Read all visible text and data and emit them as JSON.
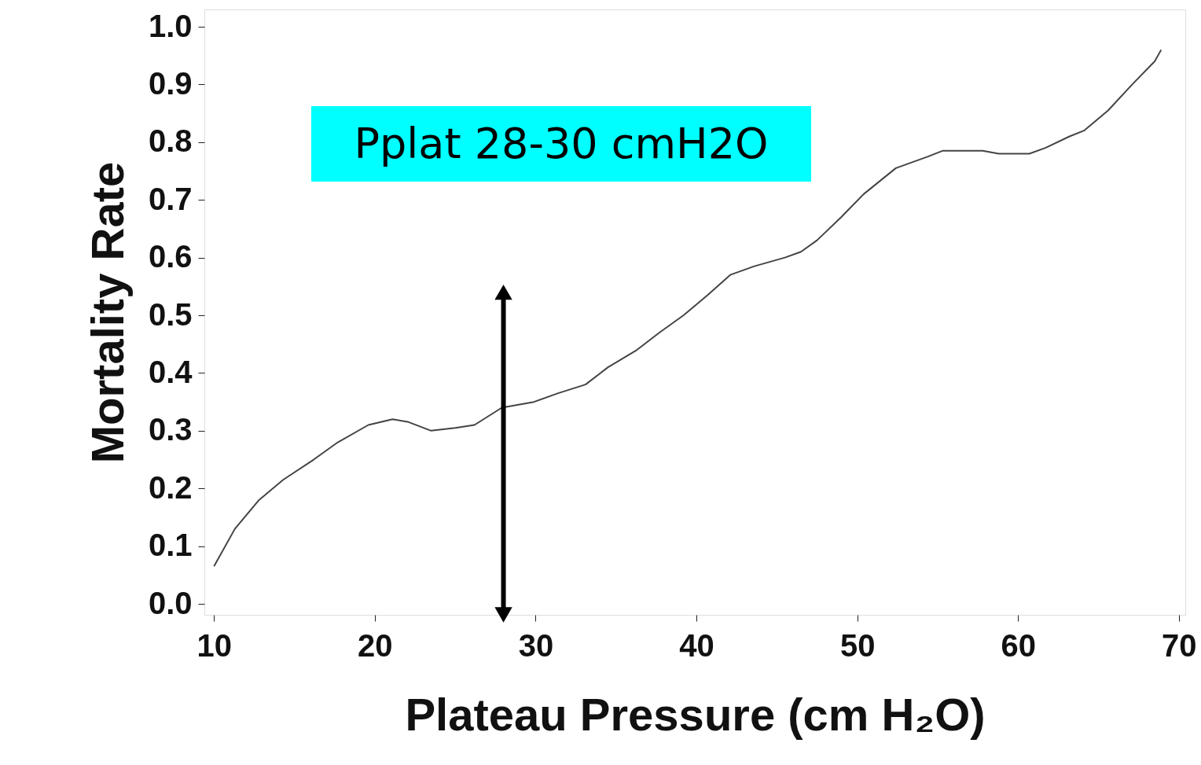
{
  "chart_data": {
    "type": "line",
    "xlabel": "Plateau Pressure (cm H₂O)",
    "ylabel": "Mortality Rate",
    "xlim": [
      9.4,
      70.4
    ],
    "ylim": [
      -0.019,
      1.03
    ],
    "xticks": [
      10,
      20,
      30,
      40,
      50,
      60,
      70
    ],
    "yticks": [
      {
        "value": 0,
        "label": "0.0"
      },
      0.1,
      0.2,
      0.3,
      0.4,
      0.5,
      0.6,
      0.7,
      0.8,
      0.9,
      {
        "value": 1,
        "label": "1.0"
      }
    ],
    "grid": false,
    "marker": "none",
    "line_style": "solid",
    "series": [
      {
        "color": "#444444",
        "x": [
          10,
          11.3,
          12.8,
          14.3,
          16.2,
          17.7,
          19.6,
          21.1,
          22.1,
          23.5,
          25,
          26.2,
          27.9,
          29.9,
          31.4,
          33.1,
          34.5,
          36.3,
          37.7,
          39.2,
          40.7,
          42.1,
          43.6,
          45.5,
          46.5,
          47.5,
          49,
          50.4,
          52.4,
          54.4,
          55.3,
          57.8,
          58.8,
          60.7,
          61.7,
          63.2,
          64.1,
          65.6,
          67.1,
          68.5,
          68.9
        ],
        "values": [
          0.065,
          0.13,
          0.18,
          0.215,
          0.25,
          0.28,
          0.31,
          0.32,
          0.315,
          0.3,
          0.305,
          0.31,
          0.34,
          0.35,
          0.365,
          0.38,
          0.41,
          0.44,
          0.47,
          0.5,
          0.535,
          0.57,
          0.585,
          0.6,
          0.61,
          0.63,
          0.67,
          0.71,
          0.755,
          0.775,
          0.785,
          0.785,
          0.78,
          0.78,
          0.79,
          0.81,
          0.82,
          0.855,
          0.9,
          0.94,
          0.96
        ]
      }
    ],
    "annotations": [
      {
        "text": "Pplat 28-30 cmH2O",
        "x": 28,
        "y": 0.54
      }
    ]
  }
}
